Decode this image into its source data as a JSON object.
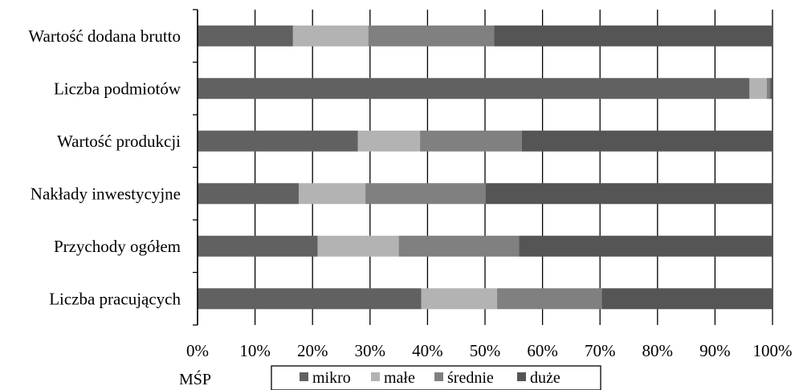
{
  "chart_data": {
    "type": "bar",
    "orientation": "horizontal",
    "stacked": true,
    "percent": true,
    "categories": [
      "Wartość dodana brutto",
      "Liczba podmiotów",
      "Wartość produkcji",
      "Nakłady inwestycyjne",
      "Przychody ogółem",
      "Liczba pracujących"
    ],
    "series": [
      {
        "name": "mikro",
        "color": "#616161",
        "values": [
          16.6,
          96.0,
          27.9,
          17.6,
          20.9,
          38.9
        ]
      },
      {
        "name": "małe",
        "color": "#b3b3b3",
        "values": [
          13.1,
          3.0,
          10.8,
          11.6,
          14.1,
          13.2
        ]
      },
      {
        "name": "średnie",
        "color": "#808080",
        "values": [
          21.9,
          0.6,
          17.7,
          20.9,
          20.9,
          18.2
        ]
      },
      {
        "name": "duże",
        "color": "#555555",
        "values": [
          48.4,
          0.4,
          43.6,
          49.9,
          44.1,
          29.7
        ]
      }
    ],
    "xlim": [
      0,
      100
    ],
    "x_ticks": [
      "0%",
      "10%",
      "20%",
      "30%",
      "40%",
      "50%",
      "60%",
      "70%",
      "80%",
      "90%",
      "100%"
    ],
    "grid": "vertical",
    "legend_position": "bottom",
    "title": "",
    "xlabel": "",
    "ylabel": ""
  },
  "legend_caption": "MŚP"
}
